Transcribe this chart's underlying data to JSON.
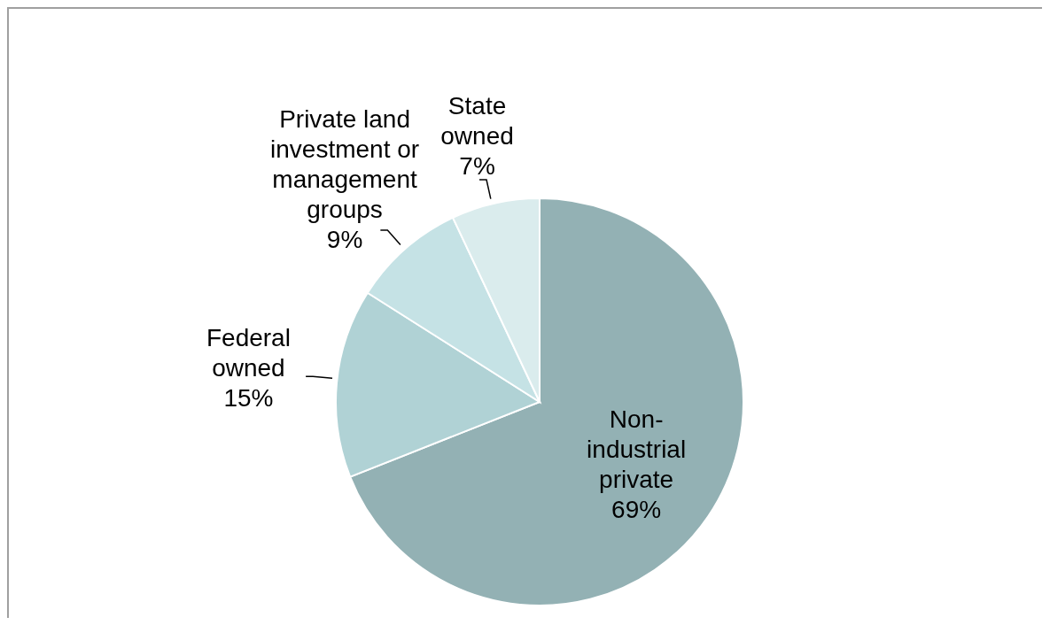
{
  "chart_data": {
    "type": "pie",
    "categories": [
      "Non-industrial private",
      "Federal owned",
      "Private land investment or management groups",
      "State owned"
    ],
    "values": [
      69,
      15,
      9,
      7
    ],
    "value_labels": [
      "69%",
      "15%",
      "9%",
      "7%"
    ],
    "colors": [
      "#93b1b4",
      "#b0d2d5",
      "#c5e2e5",
      "#daeced"
    ],
    "legend": false
  }
}
